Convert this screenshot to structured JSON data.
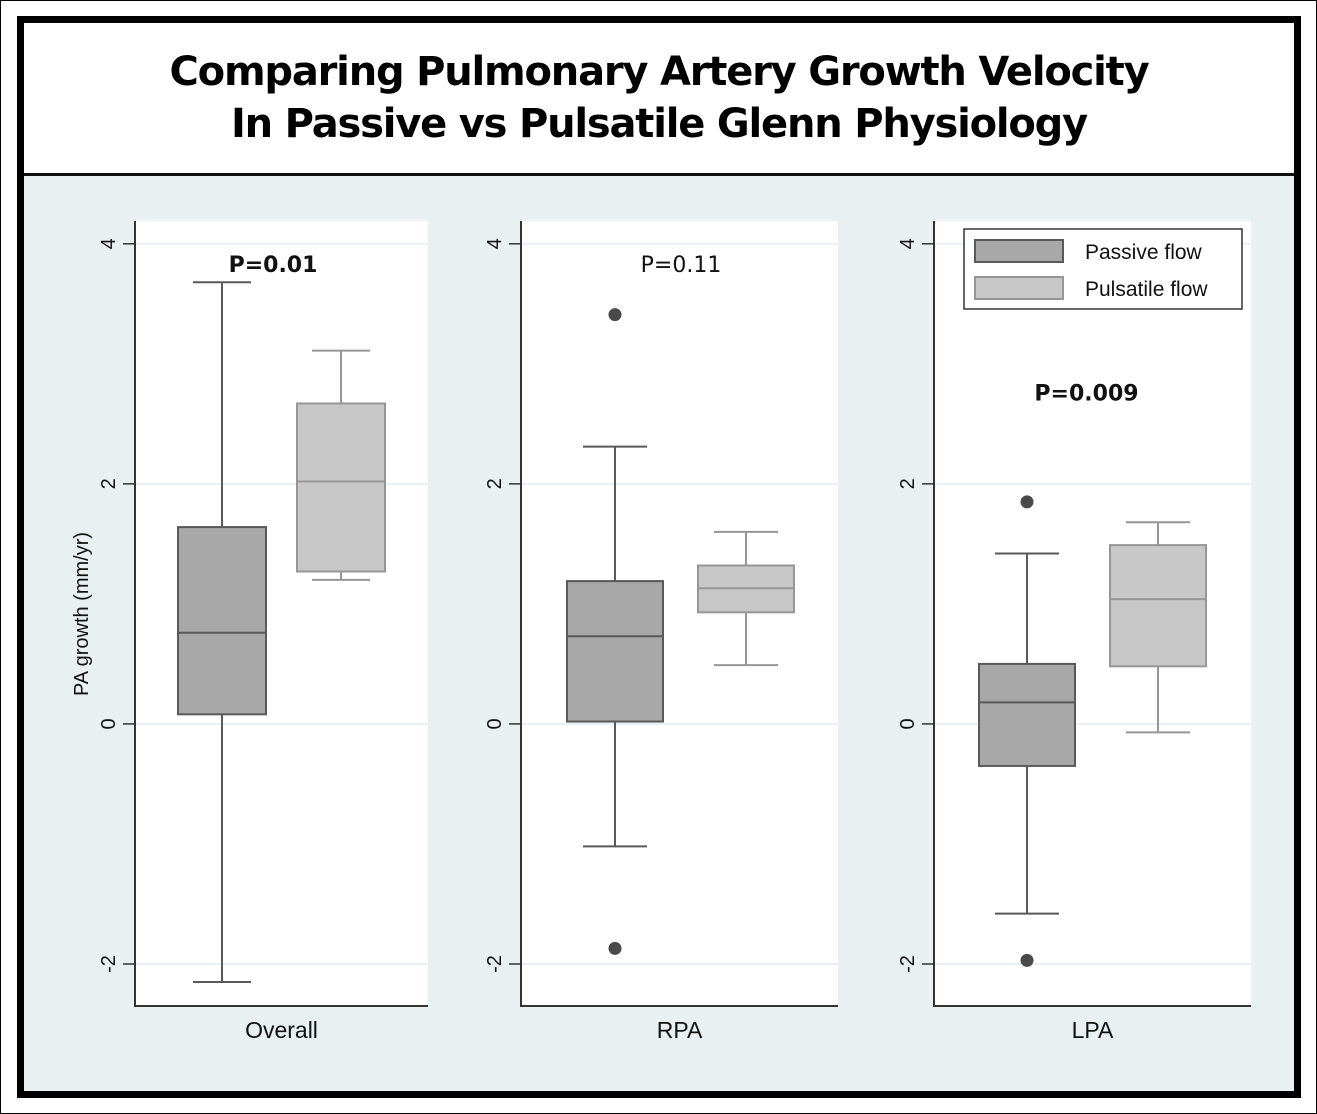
{
  "title": {
    "line1": "Comparing Pulmonary Artery Growth Velocity",
    "line2": "In Passive vs Pulsatile Glenn Physiology"
  },
  "colors": {
    "background": "#e9f0f2",
    "plot_background": "#ffffff",
    "passive_fill": "#a8a8a8",
    "passive_stroke": "#595959",
    "pulsatile_fill": "#c8c8c8",
    "pulsatile_stroke": "#969696",
    "outlier": "#4a4a4a",
    "grid": "#e8f0f4"
  },
  "chart_data": {
    "type": "box",
    "title": "Comparing Pulmonary Artery Growth Velocity In Passive vs Pulsatile Glenn Physiology",
    "ylabel": "PA growth (mm/yr)",
    "ylim": [
      -2.35,
      4.19
    ],
    "yticks": [
      -2,
      0,
      2,
      4
    ],
    "grid": true,
    "legend": {
      "placement": "top-right of LPA panel",
      "entries": [
        "Passive flow",
        "Pulsatile flow"
      ]
    },
    "series_names": [
      "Passive flow",
      "Pulsatile flow"
    ],
    "panels": [
      {
        "category": "Overall",
        "p_value": "P=0.01",
        "p_bold": true,
        "p_y": 3.83,
        "boxes": [
          {
            "series": "Passive flow",
            "whisker_low": -2.15,
            "q1": 0.08,
            "median": 0.76,
            "q3": 1.64,
            "whisker_high": 3.68,
            "outliers": []
          },
          {
            "series": "Pulsatile flow",
            "whisker_low": 1.2,
            "q1": 1.27,
            "median": 2.02,
            "q3": 2.67,
            "whisker_high": 3.11,
            "outliers": []
          }
        ]
      },
      {
        "category": "RPA",
        "p_value": "P=0.11",
        "p_bold": false,
        "p_y": 3.83,
        "boxes": [
          {
            "series": "Passive flow",
            "whisker_low": -1.02,
            "q1": 0.02,
            "median": 0.73,
            "q3": 1.19,
            "whisker_high": 2.31,
            "outliers": [
              3.41,
              -1.87
            ]
          },
          {
            "series": "Pulsatile flow",
            "whisker_low": 0.49,
            "q1": 0.93,
            "median": 1.13,
            "q3": 1.32,
            "whisker_high": 1.6,
            "outliers": []
          }
        ]
      },
      {
        "category": "LPA",
        "p_value": "P=0.009",
        "p_bold": true,
        "p_y": 2.76,
        "boxes": [
          {
            "series": "Passive flow",
            "whisker_low": -1.58,
            "q1": -0.35,
            "median": 0.18,
            "q3": 0.5,
            "whisker_high": 1.42,
            "outliers": [
              1.85,
              -1.97
            ]
          },
          {
            "series": "Pulsatile flow",
            "whisker_low": -0.07,
            "q1": 0.48,
            "median": 1.04,
            "q3": 1.49,
            "whisker_high": 1.68,
            "outliers": []
          }
        ]
      }
    ]
  }
}
